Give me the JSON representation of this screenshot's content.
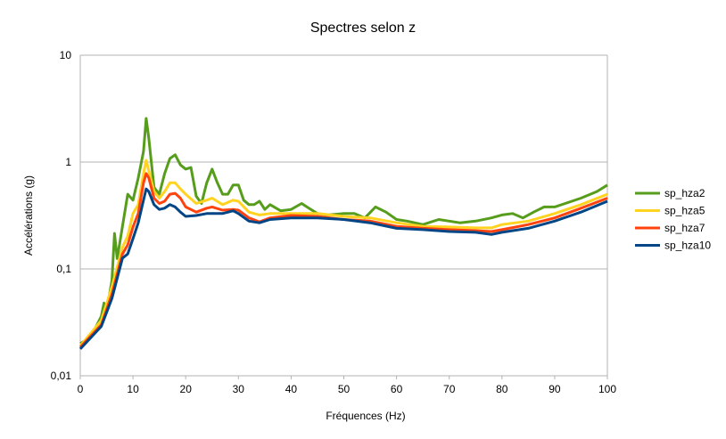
{
  "chart_data": {
    "type": "line",
    "title": "Spectres selon z",
    "xlabel": "Fréquences (Hz)",
    "ylabel": "Accélérations (g)",
    "xlim": [
      0,
      100
    ],
    "ylim": [
      0.01,
      10
    ],
    "yscale": "log",
    "xticks": [
      "0",
      "10",
      "20",
      "30",
      "40",
      "50",
      "60",
      "70",
      "80",
      "90",
      "100"
    ],
    "yticks": [
      {
        "value": 10,
        "label": "10"
      },
      {
        "value": 1,
        "label": "1"
      },
      {
        "value": 0.1,
        "label": "0,1"
      },
      {
        "value": 0.01,
        "label": "0,01"
      }
    ],
    "grid": "horizontal",
    "legend_position": "right",
    "series": [
      {
        "name": "sp_hza2",
        "color": "#579d1c",
        "x": [
          0,
          2,
          4,
          4.5,
          5,
          6,
          6.5,
          7,
          8,
          9,
          10,
          11,
          12,
          12.5,
          13,
          14,
          15,
          16,
          17,
          18,
          19,
          20,
          21,
          22,
          23,
          24,
          25,
          26,
          27,
          28,
          29,
          30,
          31,
          32,
          33,
          34,
          35,
          36,
          38,
          40,
          42,
          43,
          45,
          47,
          50,
          52,
          54,
          56,
          58,
          60,
          62,
          65,
          68,
          70,
          72,
          75,
          78,
          80,
          82,
          84,
          86,
          88,
          90,
          92,
          95,
          98,
          100
        ],
        "y": [
          0.02,
          0.023,
          0.036,
          0.048,
          0.04,
          0.078,
          0.215,
          0.125,
          0.25,
          0.5,
          0.44,
          0.71,
          1.26,
          2.56,
          1.68,
          0.58,
          0.5,
          0.78,
          1.08,
          1.17,
          0.94,
          0.86,
          0.89,
          0.48,
          0.41,
          0.64,
          0.86,
          0.64,
          0.5,
          0.5,
          0.61,
          0.61,
          0.44,
          0.4,
          0.4,
          0.43,
          0.36,
          0.4,
          0.35,
          0.36,
          0.41,
          0.38,
          0.33,
          0.32,
          0.33,
          0.33,
          0.3,
          0.38,
          0.34,
          0.29,
          0.28,
          0.26,
          0.29,
          0.28,
          0.27,
          0.28,
          0.3,
          0.32,
          0.33,
          0.3,
          0.34,
          0.38,
          0.38,
          0.41,
          0.46,
          0.53,
          0.61
        ]
      },
      {
        "name": "sp_hza5",
        "color": "#ffd320",
        "x": [
          0,
          4,
          6,
          8,
          9,
          10,
          11,
          12,
          12.5,
          13,
          14,
          15,
          16,
          17,
          18,
          19,
          20,
          22,
          24,
          25,
          27,
          29,
          30,
          32,
          34,
          36,
          40,
          45,
          50,
          55,
          60,
          65,
          70,
          75,
          78,
          80,
          85,
          90,
          95,
          100
        ],
        "y": [
          0.019,
          0.033,
          0.068,
          0.159,
          0.203,
          0.33,
          0.4,
          0.78,
          1.04,
          0.83,
          0.53,
          0.46,
          0.53,
          0.64,
          0.64,
          0.56,
          0.5,
          0.41,
          0.44,
          0.46,
          0.4,
          0.44,
          0.43,
          0.34,
          0.32,
          0.33,
          0.33,
          0.33,
          0.31,
          0.3,
          0.27,
          0.25,
          0.247,
          0.242,
          0.242,
          0.26,
          0.28,
          0.33,
          0.4,
          0.5
        ]
      },
      {
        "name": "sp_hza7",
        "color": "#ff420e",
        "x": [
          0,
          4,
          6,
          8,
          9,
          10,
          11,
          12,
          12.5,
          13,
          14,
          15,
          16,
          17,
          18,
          19,
          20,
          22,
          24,
          25,
          27,
          29,
          30,
          32,
          34,
          36,
          40,
          45,
          50,
          55,
          60,
          65,
          70,
          75,
          78,
          80,
          85,
          90,
          95,
          100
        ],
        "y": [
          0.0185,
          0.03,
          0.058,
          0.138,
          0.168,
          0.247,
          0.33,
          0.64,
          0.78,
          0.71,
          0.46,
          0.41,
          0.43,
          0.5,
          0.51,
          0.46,
          0.38,
          0.34,
          0.37,
          0.38,
          0.355,
          0.36,
          0.355,
          0.3,
          0.276,
          0.3,
          0.316,
          0.31,
          0.29,
          0.28,
          0.25,
          0.24,
          0.233,
          0.228,
          0.224,
          0.233,
          0.26,
          0.3,
          0.37,
          0.46
        ]
      },
      {
        "name": "sp_hza10",
        "color": "#004586",
        "x": [
          0,
          4,
          6,
          8,
          9,
          10,
          11,
          12,
          12.5,
          13,
          14,
          15,
          16,
          17,
          18,
          19,
          20,
          22,
          24,
          25,
          27,
          29,
          30,
          32,
          34,
          36,
          40,
          45,
          50,
          55,
          60,
          65,
          70,
          75,
          78,
          80,
          85,
          90,
          95,
          100
        ],
        "y": [
          0.0178,
          0.029,
          0.053,
          0.126,
          0.138,
          0.192,
          0.27,
          0.44,
          0.56,
          0.53,
          0.4,
          0.36,
          0.37,
          0.4,
          0.38,
          0.34,
          0.31,
          0.316,
          0.33,
          0.33,
          0.33,
          0.35,
          0.33,
          0.28,
          0.27,
          0.29,
          0.3,
          0.3,
          0.29,
          0.27,
          0.24,
          0.233,
          0.224,
          0.22,
          0.21,
          0.22,
          0.24,
          0.28,
          0.34,
          0.43
        ]
      }
    ]
  }
}
